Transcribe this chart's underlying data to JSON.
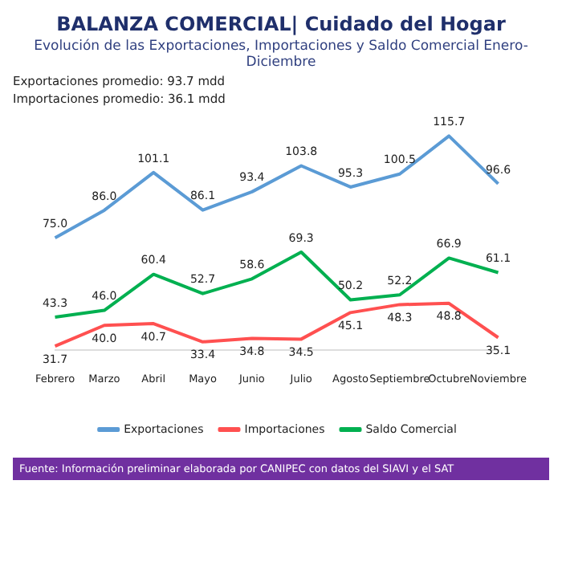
{
  "chart_data": {
    "type": "line",
    "title": "BALANZA COMERCIAL| Cuidado del Hogar",
    "subtitle": "Evolución de las Exportaciones, Importaciones y Saldo Comercial Enero-Diciembre",
    "annotations": [
      "Exportaciones promedio: 93.7 mdd",
      "Importaciones promedio: 36.1 mdd",
      "Fuente: Información preliminar elaborada por CANIPEC con datos del SIAVI y el SAT"
    ],
    "categories": [
      "Febrero",
      "Marzo",
      "Abril",
      "Mayo",
      "Junio",
      "Julio",
      "Agosto",
      "Septiembre",
      "Octubre",
      "Noviembre"
    ],
    "series": [
      {
        "name": "Exportaciones",
        "color": "#5b9bd5",
        "values": [
          75.0,
          86.0,
          101.1,
          86.1,
          93.4,
          103.8,
          95.3,
          100.5,
          115.7,
          96.6
        ],
        "value_labels": [
          "75.0",
          "86.0",
          "101.1",
          "86.1",
          "93.4",
          "103.8",
          "95.3",
          "100.5",
          "115.7",
          "96.6"
        ]
      },
      {
        "name": "Importaciones",
        "color": "#ff5050",
        "values": [
          31.7,
          40.0,
          40.7,
          33.4,
          34.8,
          34.5,
          45.1,
          48.3,
          48.8,
          35.1
        ],
        "value_labels": [
          "31.7",
          "40.0",
          "40.7",
          "33.4",
          "34.8",
          "34.5",
          "45.1",
          "48.3",
          "48.8",
          "35.1"
        ]
      },
      {
        "name": "Saldo Comercial",
        "color": "#00b050",
        "values": [
          43.3,
          46.0,
          60.4,
          52.7,
          58.6,
          69.3,
          50.2,
          52.2,
          66.9,
          61.1
        ],
        "value_labels": [
          "43.3",
          "46.0",
          "60.4",
          "52.7",
          "58.6",
          "69.3",
          "50.2",
          "52.2",
          "66.9",
          "61.1"
        ]
      }
    ],
    "grid": false,
    "legend": "bottom",
    "marker": "none",
    "line_style": "solid"
  }
}
